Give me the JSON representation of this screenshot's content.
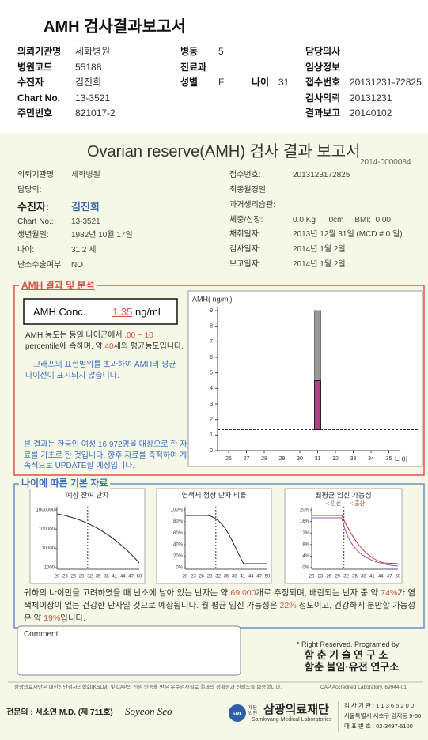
{
  "header": {
    "title": "AMH 검사결과보고서",
    "fields": [
      {
        "label": "의뢰기관명",
        "value": "세화병원"
      },
      {
        "label": "병동",
        "value": "5"
      },
      {
        "label": "담당의사"
      },
      {
        "label": "병원코드",
        "value": "55188"
      },
      {
        "label": "진료과"
      },
      {
        "label": "임상정보"
      },
      {
        "label": "수진자",
        "value": "김진희"
      },
      {
        "label": "성별",
        "value": "F"
      },
      {
        "label": "나이",
        "value": "31"
      },
      {
        "label": "접수번호",
        "value": "20131231-72825"
      },
      {
        "label": "Chart No.",
        "value": "13-3521"
      },
      {
        "label": "검사의뢰",
        "value": "20131231"
      },
      {
        "label": "주민번호",
        "value": "821017-2"
      },
      {
        "label": "결과보고",
        "value": "20140102"
      }
    ]
  },
  "report": {
    "title": "Ovarian reserve(AMH) 검사 결과 보고서",
    "number": "2014-0000084",
    "left": [
      {
        "label": "의뢰기관명:",
        "value": "세화병원"
      },
      {
        "label": "담당의:"
      },
      {
        "label": "수진자:",
        "value": "김진희"
      },
      {
        "label": "Chart No.:",
        "value": "13-3521"
      },
      {
        "label": "생년월일:",
        "value": "1982년 10월 17일"
      },
      {
        "label": "나이:",
        "value": "31.2 세"
      },
      {
        "label": "난소수술여부:",
        "value": "NO"
      }
    ],
    "right": [
      {
        "label": "접수번호:",
        "value": "2013123172825"
      },
      {
        "label": "최종월경일:"
      },
      {
        "label": "과거생리습관:"
      },
      {
        "label": "체중/신장:",
        "value": "0.0 Kg      0cm     BMI:  0.00"
      },
      {
        "label": "채취일자:",
        "value": "2013년 12월 31일 (MCD # 0 일)"
      },
      {
        "label": "검사일자:",
        "value": "2014년 1월 2일"
      },
      {
        "label": "보고일자:",
        "value": "2014년 1월 2일"
      }
    ]
  },
  "amh": {
    "heading": "AMH 결과 및 분석",
    "conc_label": "AMH Conc.",
    "conc_value": 1.35,
    "conc_unit": "ng/ml",
    "text": [
      "AMH 농도는 동일 나이군에서 ",
      ".00 ~ 10",
      " percentile에 속하며, 약 ",
      "40",
      "세의 평균농도입니다."
    ],
    "note": "그래프의 표현범위를 초과하여 AMH의 평균나이선이 표시되지 않습니다.",
    "source": "본 결과는 한국인 여성 16,972명을 대상으로 한 자료를 기초로 한 것입니다. 향후 자료를 축적하여 계속적으로 UPDATE할 예정입니다.",
    "chart": {
      "type": "bar",
      "ylabel": "AMH( ng/ml)",
      "xlabel": "나이",
      "ylim": [
        0,
        9
      ],
      "yticks": [
        0,
        1,
        2,
        3,
        4,
        5,
        6,
        7,
        8,
        9
      ],
      "xticks": [
        26,
        27,
        28,
        29,
        30,
        31,
        32,
        33,
        34,
        35
      ],
      "bar_x": 31,
      "range_top": 9,
      "mean": 4.5
    }
  },
  "basic": {
    "heading": "나이에 따른 기본 자료",
    "charts": [
      {
        "title": "예상 잔여 난자",
        "log": true,
        "ylim": [
          1000,
          1000000
        ],
        "yticks": [
          1000000,
          100000,
          10000,
          1000
        ],
        "xlim": [
          20,
          50
        ],
        "xticks": [
          20,
          23,
          26,
          29,
          32,
          35,
          38,
          41,
          44,
          47,
          50
        ]
      },
      {
        "title": "염색체 정상 난자 비율",
        "ylim": [
          0,
          100
        ],
        "yticks": [
          {
            "value": 100,
            "label": "100%"
          },
          {
            "value": 80,
            "label": "80%"
          },
          {
            "value": 60,
            "label": "60%"
          },
          {
            "value": 40,
            "label": "40%"
          },
          {
            "value": 20,
            "label": "20%"
          },
          {
            "value": 0,
            "label": "0%"
          }
        ],
        "xlim": [
          20,
          50
        ],
        "xticks": [
          20,
          23,
          26,
          29,
          32,
          35,
          38,
          41,
          44,
          47,
          50
        ]
      },
      {
        "title": "월평균 임신 가능성",
        "legend": [
          "-: 임신",
          "-: 출산"
        ],
        "ylim": [
          0,
          20
        ],
        "yticks": [
          {
            "value": 20,
            "label": "20%"
          },
          {
            "value": 16,
            "label": "16%"
          },
          {
            "value": 12,
            "label": "12%"
          },
          {
            "value": 8,
            "label": "8%"
          },
          {
            "value": 4,
            "label": "4%"
          },
          {
            "value": 0,
            "label": "0%"
          }
        ],
        "xlim": [
          20,
          50
        ],
        "xticks": [
          20,
          23,
          26,
          29,
          32,
          35,
          38,
          41,
          44,
          47,
          50
        ]
      }
    ],
    "text": [
      "귀하의 나이만을 고려하였을 때 난소에 남아 있는 난자는 약 ",
      "69,000",
      "개로 추정되며, 배란되는 난자 중 약 ",
      "74%",
      "가 염색체이상이 없는 건강한 난자일 것으로 예상됩니다. 월 평균 임신 가능성은 ",
      "22%",
      " 정도이고, 건강하게 분만할 가능성은 약 ",
      "19%",
      "입니다."
    ]
  },
  "comment": {
    "label": "Comment"
  },
  "credits": {
    "rights": "* Right Reserved. Programed by",
    "lab1": "함 춘 기 술 연 구 소",
    "lab2": "함춘 불임·유전 연구소"
  },
  "footer": {
    "notice": "삼광의료재단은 대한진단검사의학회(KSLM) 및 CAP의 신임 인증을 받은 우수검사실로 결과의 정확성과 신뢰도를 보증합니다.",
    "cap": "CAP Accredited Laboratory.  69944-01",
    "doctor": "전문의 : 서소연 M.D. (제 711호)",
    "signature": "Soyeon Seo",
    "logo": "SML",
    "foundation_type": "재단법인",
    "foundation": "삼광의료재단",
    "foundation_en": "Samkwang Medical Laboratories",
    "info": [
      "검 사 기 관 : 1 1 3 6 5 2 0 0",
      "서울특별시 서초구 양재동 9-60",
      "대 표 번 호 : 02-3497-5100"
    ]
  }
}
